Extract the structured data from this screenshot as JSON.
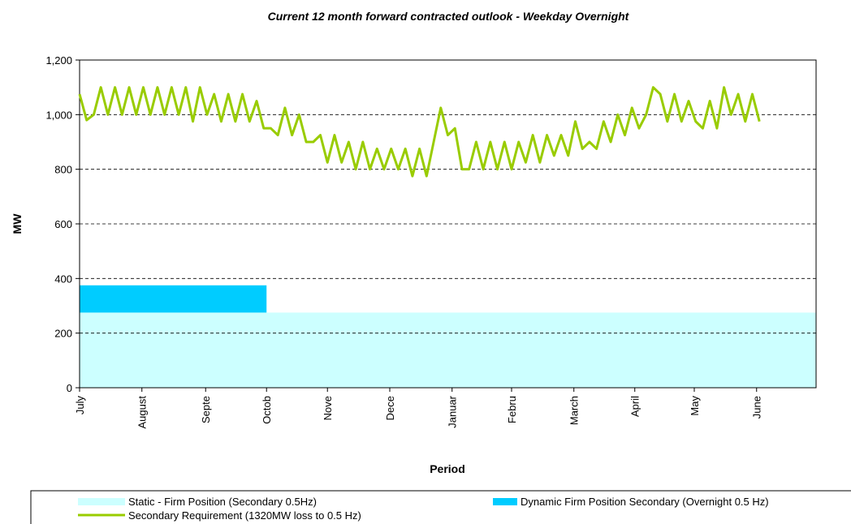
{
  "chart_data": {
    "type": "combo",
    "title": "Current 12 month forward contracted outlook - Weekday Overnight",
    "xlabel": "Period",
    "ylabel": "MW",
    "xlim": [
      0,
      52
    ],
    "xticks": [
      {
        "value": 0,
        "label": "July"
      },
      {
        "value": 4.4,
        "label": "August"
      },
      {
        "value": 8.9,
        "label": "Septe"
      },
      {
        "value": 13.2,
        "label": "Octob"
      },
      {
        "value": 17.5,
        "label": "Nove"
      },
      {
        "value": 21.9,
        "label": "Dece"
      },
      {
        "value": 26.3,
        "label": "Januar"
      },
      {
        "value": 30.5,
        "label": "Febru"
      },
      {
        "value": 34.9,
        "label": "March"
      },
      {
        "value": 39.2,
        "label": "April"
      },
      {
        "value": 43.4,
        "label": "May"
      },
      {
        "value": 47.8,
        "label": "June"
      }
    ],
    "ylim": [
      0,
      1200
    ],
    "yticks": [
      0,
      {
        "value": 200,
        "label": "200"
      },
      {
        "value": 400,
        "label": "400"
      },
      {
        "value": 600,
        "label": "600"
      },
      {
        "value": 800,
        "label": "800"
      },
      {
        "value": 1000,
        "label": "1,000"
      },
      {
        "value": 1200,
        "label": "1,200"
      }
    ],
    "grid": true,
    "series": [
      {
        "name": "Static - Firm Position (Secondary 0.5Hz)",
        "type": "area",
        "color": "#ccffff",
        "x": [
          0,
          52
        ],
        "values": [
          275,
          275
        ]
      },
      {
        "name": "Dynamic Firm Position Secondary  (Overnight 0.5 Hz)",
        "type": "area",
        "stacked": true,
        "color": "#00ccff",
        "x": [
          0,
          13.2
        ],
        "values": [
          100,
          100
        ]
      },
      {
        "name": "Secondary Requirement (1320MW loss to 0.5 Hz)",
        "type": "line",
        "color": "#99cc00",
        "x": [
          0,
          0.5,
          1,
          1.5,
          2,
          2.5,
          3,
          3.5,
          4,
          4.5,
          5,
          5.5,
          6,
          6.5,
          7,
          7.5,
          8,
          8.5,
          9,
          9.5,
          10,
          10.5,
          11,
          11.5,
          12,
          12.5,
          13,
          13.5,
          14,
          14.5,
          15,
          15.5,
          16,
          16.5,
          17,
          17.5,
          18,
          18.5,
          19,
          19.5,
          20,
          20.5,
          21,
          21.5,
          22,
          22.5,
          23,
          23.5,
          24,
          24.5,
          25,
          25.5,
          26,
          26.5,
          27,
          27.5,
          28,
          28.5,
          29,
          29.5,
          30,
          30.5,
          31,
          31.5,
          32,
          32.5,
          33,
          33.5,
          34,
          34.5,
          35,
          35.5,
          36,
          36.5,
          37,
          37.5,
          38,
          38.5,
          39,
          39.5,
          40,
          40.5,
          41,
          41.5,
          42,
          42.5,
          43,
          43.5,
          44,
          44.5,
          45,
          45.5,
          46,
          46.5,
          47,
          47.5,
          48
        ],
        "values": [
          1075,
          980,
          1000,
          1100,
          1000,
          1100,
          1000,
          1100,
          1000,
          1100,
          1000,
          1100,
          1000,
          1100,
          1000,
          1100,
          975,
          1100,
          1000,
          1075,
          975,
          1075,
          975,
          1075,
          975,
          1050,
          950,
          950,
          925,
          1025,
          925,
          1000,
          900,
          900,
          925,
          825,
          925,
          825,
          900,
          800,
          900,
          800,
          875,
          800,
          875,
          800,
          875,
          775,
          875,
          775,
          900,
          1025,
          925,
          950,
          800,
          800,
          900,
          800,
          900,
          800,
          900,
          800,
          900,
          825,
          925,
          825,
          925,
          850,
          925,
          850,
          975,
          875,
          900,
          875,
          975,
          900,
          1000,
          925,
          1025,
          950,
          1000,
          1100,
          1075,
          975,
          1075,
          975,
          1050,
          975,
          950,
          1050,
          950,
          1100,
          1000,
          1075,
          975,
          1075,
          975
        ]
      }
    ]
  }
}
